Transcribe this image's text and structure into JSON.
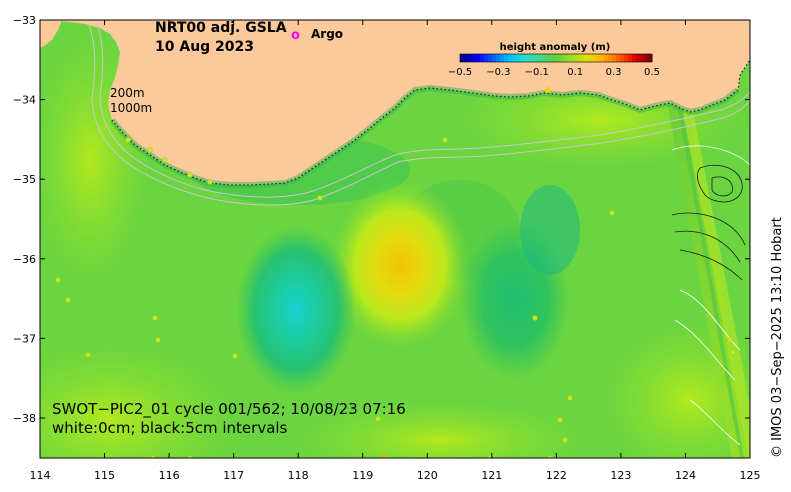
{
  "title": {
    "line1": "NRT00 adj. GSLA",
    "line2": "10 Aug 2023"
  },
  "legend": {
    "argo_marker": "o",
    "argo_label": "Argo"
  },
  "colorbar": {
    "title": "height anomaly (m)",
    "ticks": [
      "−0.5",
      "−0.3",
      "−0.1",
      "0.1",
      "0.3",
      "0.5"
    ]
  },
  "contour_labels": {
    "depth1": "200m",
    "depth2": "1000m"
  },
  "annotation": {
    "line1": "SWOT−PIC2_01 cycle 001/562; 10/08/23 07:16",
    "line2": "white:0cm; black:5cm intervals"
  },
  "credit": "© IMOS 03−Sep−2025 13:10 Hobart",
  "axes": {
    "x_ticks": [
      "114",
      "115",
      "116",
      "117",
      "118",
      "119",
      "120",
      "121",
      "122",
      "123",
      "124",
      "125"
    ],
    "y_ticks": [
      "−33",
      "−34",
      "−35",
      "−36",
      "−37",
      "−38"
    ]
  },
  "colors": {
    "land": "#fbc99a",
    "ocean_base": "#5fd14a",
    "high_center": "#f2c800",
    "low_center": "#1fd0c8",
    "argo": "#ff00ff"
  }
}
